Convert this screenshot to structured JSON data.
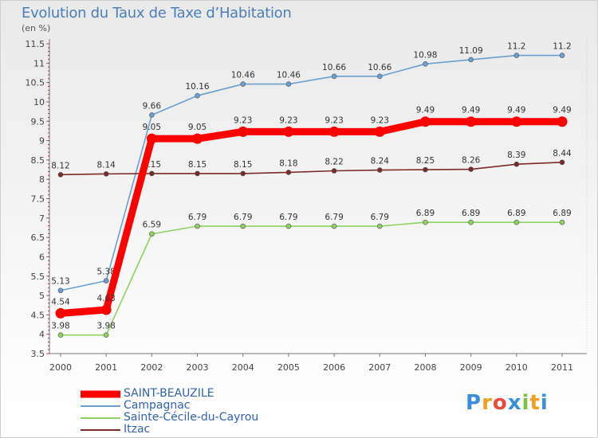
{
  "title": "Evolution du Taux de Taxe d’Habitation",
  "unit": "(en %)",
  "brand": {
    "letters": [
      "P",
      "r",
      "o",
      "x",
      "i",
      "t",
      "i"
    ],
    "colors": [
      "#3b8fd8",
      "#f0a020",
      "#e84b3a",
      "#3b8fd8",
      "#7cc142",
      "#f0a020",
      "#3b8fd8"
    ]
  },
  "chart_data": {
    "type": "line",
    "x": [
      "2000",
      "2001",
      "2002",
      "2003",
      "2004",
      "2005",
      "2006",
      "2007",
      "2008",
      "2009",
      "2010",
      "2011"
    ],
    "ylim": [
      3.5,
      11.5
    ],
    "yticks": [
      "3.5",
      "4",
      "4.5",
      "5",
      "5.5",
      "6",
      "6.5",
      "7",
      "7.5",
      "8",
      "8.5",
      "9",
      "9.5",
      "10",
      "10.5",
      "11",
      "11.5"
    ],
    "grid": false,
    "legend_position": "bottom-left",
    "series": [
      {
        "name": "Campagnac",
        "color": "#6a9fd0",
        "values": [
          5.13,
          5.38,
          9.66,
          10.16,
          10.46,
          10.46,
          10.66,
          10.66,
          10.98,
          11.09,
          11.2,
          11.2
        ],
        "labels": [
          "5.13",
          "5.38",
          "9.66",
          "10.16",
          "10.46",
          "10.46",
          "10.66",
          "10.66",
          "10.98",
          "11.09",
          "11.2",
          "11.2"
        ]
      },
      {
        "name": "Itzac",
        "color": "#7a2a2a",
        "values": [
          8.12,
          8.14,
          8.15,
          8.15,
          8.15,
          8.18,
          8.22,
          8.24,
          8.25,
          8.26,
          8.39,
          8.44
        ],
        "labels": [
          "8.12",
          "8.14",
          "8.15",
          "8.15",
          "8.15",
          "8.18",
          "8.22",
          "8.24",
          "8.25",
          "8.26",
          "8.39",
          "8.44"
        ]
      },
      {
        "name": "Sainte-Cécile-du-Cayrou",
        "color": "#8fd162",
        "values": [
          3.98,
          3.98,
          6.59,
          6.79,
          6.79,
          6.79,
          6.79,
          6.79,
          6.89,
          6.89,
          6.89,
          6.89
        ],
        "labels": [
          "3.98",
          "3.98",
          "6.59",
          "6.79",
          "6.79",
          "6.79",
          "6.79",
          "6.79",
          "6.89",
          "6.89",
          "6.89",
          "6.89"
        ]
      },
      {
        "name": "SAINT-BEAUZILE",
        "color": "#ff0000",
        "values": [
          4.54,
          4.63,
          9.05,
          9.05,
          9.23,
          9.23,
          9.23,
          9.23,
          9.49,
          9.49,
          9.49,
          9.49
        ],
        "labels": [
          "4.54",
          "4.63",
          "9.05",
          "9.05",
          "9.23",
          "9.23",
          "9.23",
          "9.23",
          "9.49",
          "9.49",
          "9.49",
          "9.49"
        ]
      }
    ],
    "legend": [
      {
        "name": "SAINT-BEAUZILE",
        "color": "#ff0000"
      },
      {
        "name": "Campagnac",
        "color": "#6a9fd0"
      },
      {
        "name": "Sainte-Cécile-du-Cayrou",
        "color": "#8fd162"
      },
      {
        "name": "Itzac",
        "color": "#7a2a2a"
      }
    ]
  }
}
